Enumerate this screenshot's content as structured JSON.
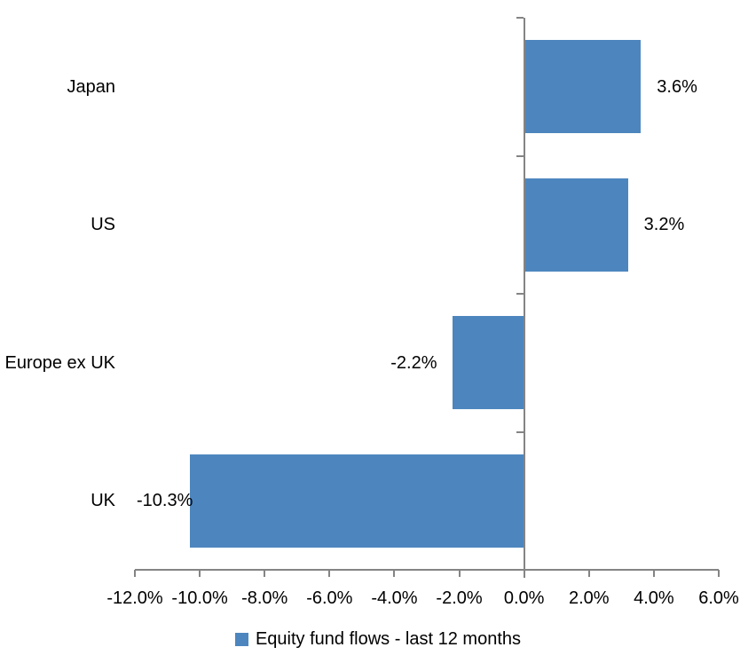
{
  "chart_data": {
    "type": "bar",
    "orientation": "horizontal",
    "title": "",
    "xlabel": "",
    "ylabel": "",
    "categories": [
      "Japan",
      "US",
      "Europe ex UK",
      "UK"
    ],
    "values": [
      3.6,
      3.2,
      -2.2,
      -10.3
    ],
    "data_labels": [
      "3.6%",
      "3.2%",
      "-2.2%",
      "-10.3%"
    ],
    "xlim": [
      -12,
      6
    ],
    "xticks": [
      -12,
      -10,
      -8,
      -6,
      -4,
      -2,
      0,
      2,
      4,
      6
    ],
    "xtick_labels": [
      "-12.0%",
      "-10.0%",
      "-8.0%",
      "-6.0%",
      "-4.0%",
      "-2.0%",
      "0.0%",
      "2.0%",
      "4.0%",
      "6.0%"
    ],
    "grid": false,
    "legend": "Equity fund flows - last 12 months",
    "legend_position": "bottom",
    "bar_color": "#4d86be",
    "axis_color": "#848484",
    "text_color": "#000000",
    "background_color": "#ffffff"
  }
}
